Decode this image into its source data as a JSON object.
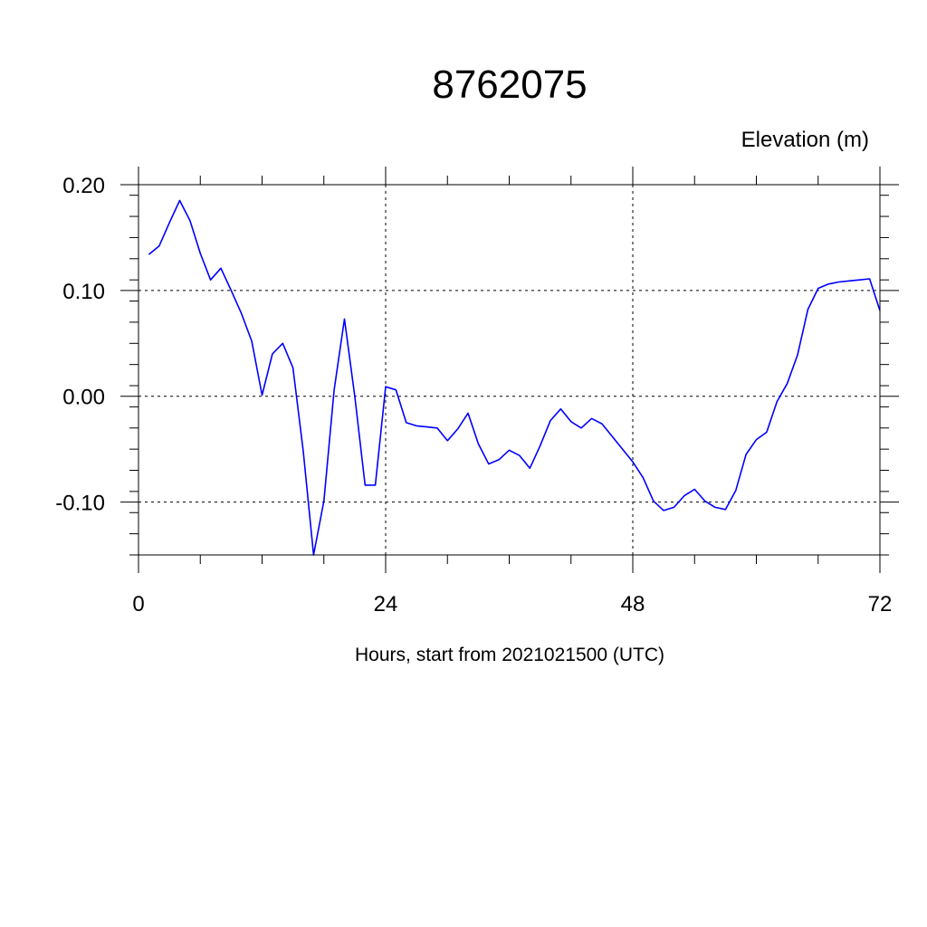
{
  "chart_data": {
    "type": "line",
    "title": "8762075",
    "ylabel": "Elevation (m)",
    "xlabel": "Hours, start from 2021021500 (UTC)",
    "xlim": [
      0,
      72
    ],
    "ylim": [
      -0.15,
      0.2
    ],
    "x_ticks": [
      0,
      24,
      48,
      72
    ],
    "x_tick_labels": [
      "0",
      "24",
      "48",
      "72"
    ],
    "y_ticks": [
      0.2,
      0.1,
      0.0,
      -0.1
    ],
    "y_tick_labels": [
      "0.20",
      "0.10",
      "0.00",
      "-0.10"
    ],
    "grid": true,
    "line_color": "#0000ff",
    "series": [
      {
        "x": [
          1,
          2,
          3,
          4,
          5,
          6,
          7,
          8,
          9,
          10,
          11,
          12,
          13,
          14,
          15,
          16,
          17,
          18,
          19,
          20,
          21,
          22,
          23,
          24,
          25,
          26,
          27,
          28,
          29,
          30,
          31,
          32,
          33,
          34,
          35,
          36,
          37,
          38,
          39,
          40,
          41,
          42,
          43,
          44,
          45,
          46,
          47,
          48,
          49,
          50,
          51,
          52,
          53,
          54,
          55,
          56,
          57,
          58,
          59,
          60,
          61,
          62,
          63,
          64,
          65,
          66,
          67,
          68,
          69,
          70,
          71,
          72
        ],
        "values": [
          0.134,
          0.142,
          0.164,
          0.185,
          0.166,
          0.135,
          0.11,
          0.121,
          0.1,
          0.078,
          0.052,
          0.001,
          0.04,
          0.05,
          0.027,
          -0.052,
          -0.15,
          -0.099,
          0.006,
          0.073,
          0.0,
          -0.084,
          -0.084,
          0.009,
          0.006,
          -0.025,
          -0.028,
          -0.029,
          -0.03,
          -0.042,
          -0.031,
          -0.016,
          -0.045,
          -0.064,
          -0.06,
          -0.051,
          -0.056,
          -0.068,
          -0.047,
          -0.023,
          -0.012,
          -0.024,
          -0.03,
          -0.021,
          -0.026,
          -0.038,
          -0.05,
          -0.062,
          -0.077,
          -0.099,
          -0.108,
          -0.105,
          -0.094,
          -0.088,
          -0.099,
          -0.105,
          -0.107,
          -0.089,
          -0.055,
          -0.041,
          -0.034,
          -0.005,
          0.012,
          0.039,
          0.082,
          0.102,
          0.106,
          0.108,
          0.109,
          0.11,
          0.111,
          0.081
        ]
      }
    ]
  }
}
